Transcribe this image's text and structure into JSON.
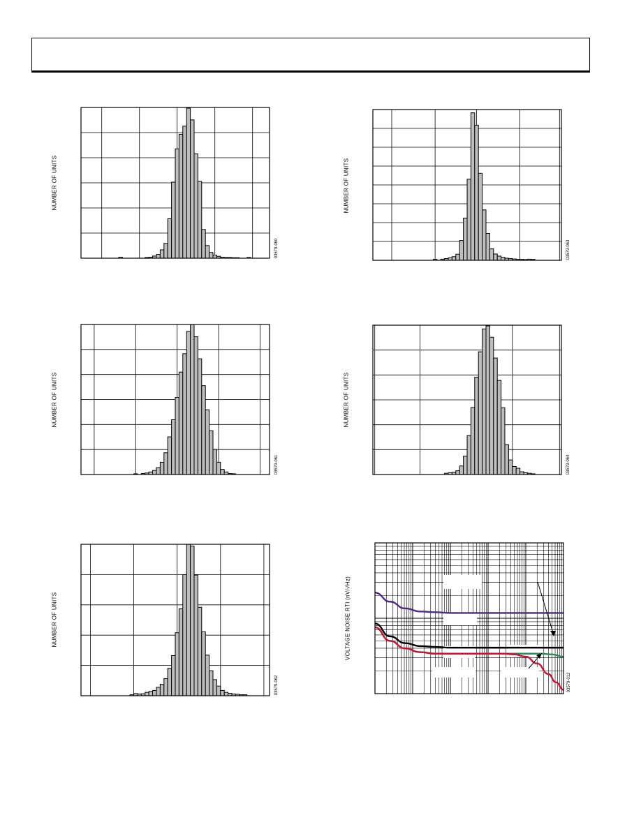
{
  "page": {
    "header_text": ""
  },
  "colors": {
    "bar_fill": "#bdbdbd",
    "bar_stroke": "#000000",
    "grid": "#000000",
    "noise_purple": "#4b2a8a",
    "noise_black": "#000000",
    "noise_green": "#2e8b57",
    "noise_red": "#cc1133"
  },
  "chart_data": [
    {
      "type": "bar",
      "id": "hist-1",
      "ylabel": "NUMBER OF UNITS",
      "figure_code": "03579-060",
      "values": [
        0,
        0,
        0,
        0,
        0,
        0,
        0,
        0,
        0,
        0,
        0.4,
        0,
        0,
        0,
        0,
        0,
        0,
        0.3,
        0.4,
        0.9,
        1.6,
        3.5,
        6.2,
        16.5,
        31.8,
        45.7,
        51.8,
        55.2,
        62.7,
        57.8,
        43.6,
        32.1,
        12.0,
        5.3,
        2.4,
        1.3,
        0.8,
        0.4,
        0.3,
        0.3,
        0.2,
        0.2,
        0,
        0,
        0.3,
        0,
        0,
        0,
        0,
        0
      ],
      "ylim": [
        0,
        63
      ],
      "xgrid_fraction": [
        0.11,
        0.31,
        0.51,
        0.71,
        0.91
      ],
      "ygrid_count": 6,
      "grid": true
    },
    {
      "type": "bar",
      "id": "hist-2",
      "ylabel": "NUMBER OF UNITS",
      "figure_code": "03579-061",
      "values": [
        0,
        0,
        0,
        0,
        0,
        0,
        0,
        0,
        0,
        0,
        0,
        0,
        0,
        0,
        0.3,
        0,
        0.4,
        0.6,
        1.0,
        1.6,
        2.7,
        4.8,
        8.5,
        14.7,
        21.4,
        30.1,
        40.0,
        47.2,
        55.9,
        58.6,
        53.8,
        45.2,
        34.7,
        25.3,
        17.1,
        9.8,
        4.8,
        2.0,
        1.0,
        0.4,
        0.3,
        0,
        0,
        0,
        0,
        0,
        0,
        0,
        0,
        0
      ],
      "ylim": [
        0,
        58.6
      ],
      "xgrid_fraction": [
        0.07,
        0.29,
        0.51,
        0.73,
        0.95
      ],
      "ygrid_count": 6,
      "grid": true
    },
    {
      "type": "bar",
      "id": "hist-3",
      "ylabel": "NUMBER OF UNITS",
      "figure_code": "03579-062",
      "values": [
        0,
        0,
        0,
        0,
        0,
        0,
        0,
        0,
        0,
        0,
        0,
        0,
        0,
        0.4,
        0.9,
        0.7,
        0.8,
        1.4,
        1.8,
        2.2,
        3.5,
        4.8,
        7.1,
        11.4,
        16.7,
        26.2,
        36.2,
        50.4,
        63.0,
        62.3,
        50.2,
        36.8,
        26.6,
        16.9,
        10.4,
        6.7,
        4.0,
        2.2,
        1.4,
        1.0,
        0.7,
        0.6,
        0.4,
        0.4,
        0,
        0,
        0,
        0,
        0,
        0
      ],
      "ylim": [
        0,
        63
      ],
      "xgrid_fraction": [
        0.05,
        0.28,
        0.51,
        0.74,
        0.97
      ],
      "ygrid_count": 5,
      "grid": true
    },
    {
      "type": "bar",
      "id": "hist-4",
      "ylabel": "NUMBER OF UNITS",
      "figure_code": "03579-063",
      "values": [
        0,
        0,
        0,
        0,
        0,
        0,
        0,
        0,
        0,
        0,
        0,
        0,
        0,
        0,
        0,
        0,
        0.5,
        0,
        0.6,
        0.9,
        1.3,
        1.9,
        3.2,
        10.4,
        22.1,
        42.5,
        77.3,
        70.8,
        45.6,
        26.4,
        14.1,
        6.0,
        3.3,
        2.2,
        1.6,
        1.1,
        0.9,
        0.7,
        0.5,
        0.5,
        0.4,
        0.6,
        0.5,
        0,
        0,
        0,
        0,
        0,
        0,
        0
      ],
      "ylim": [
        0,
        79
      ],
      "xgrid_fraction": [
        0.1,
        0.33,
        0.55,
        0.78,
        0.99
      ],
      "ygrid_count": 8,
      "grid": true
    },
    {
      "type": "bar",
      "id": "hist-5",
      "ylabel": "NUMBER OF UNITS",
      "figure_code": "03579-064",
      "values": [
        0,
        0,
        0,
        0,
        0,
        0,
        0,
        0,
        0,
        0,
        0,
        0,
        0,
        0,
        0,
        0,
        0,
        0,
        0,
        0.5,
        0.7,
        0.9,
        1.5,
        3.4,
        7.3,
        15.5,
        26.7,
        38.8,
        48.9,
        58.0,
        59.2,
        54.7,
        46.4,
        37.5,
        26.6,
        11.9,
        5.8,
        3.2,
        2.5,
        1.1,
        0.7,
        0.5,
        0.3,
        0,
        0,
        0,
        0,
        0,
        0,
        0
      ],
      "ylim": [
        0,
        59.5
      ],
      "xgrid_fraction": [
        0.01,
        0.25,
        0.74,
        0.99
      ],
      "ygrid_count": 6,
      "grid": true
    },
    {
      "type": "line",
      "id": "noise-plot",
      "ylabel": "VOLTAGE NOISE RTI (nV/√Hz)",
      "figure_code": "03579-012",
      "xscale": "log",
      "yscale": "log",
      "xdecades": 5,
      "ydecades": 2,
      "series": [
        {
          "color_key": "noise_purple",
          "x": [
            0,
            0.4,
            0.8,
            1.2,
            1.6,
            2.0,
            2.5,
            3.0,
            4.0,
            5.0
          ],
          "y": [
            1.34,
            1.22,
            1.13,
            1.09,
            1.08,
            1.07,
            1.07,
            1.07,
            1.07,
            1.07
          ]
        },
        {
          "color_key": "noise_black",
          "x": [
            0,
            0.4,
            0.8,
            1.2,
            1.6,
            2.0,
            2.5,
            3.0,
            4.0,
            5.0
          ],
          "y": [
            0.93,
            0.76,
            0.67,
            0.63,
            0.62,
            0.61,
            0.61,
            0.61,
            0.61,
            0.61
          ]
        },
        {
          "color_key": "noise_green",
          "x": [
            0,
            0.4,
            0.8,
            1.2,
            1.6,
            2.0,
            2.5,
            3.0,
            3.6,
            4.0,
            4.4,
            4.7,
            5.0
          ],
          "y": [
            0.88,
            0.7,
            0.6,
            0.55,
            0.53,
            0.53,
            0.53,
            0.53,
            0.53,
            0.53,
            0.53,
            0.52,
            0.49
          ]
        },
        {
          "color_key": "noise_red",
          "x": [
            0,
            0.4,
            0.8,
            1.2,
            1.6,
            2.0,
            2.5,
            3.0,
            3.4,
            3.7,
            4.0,
            4.3,
            4.6,
            4.8,
            5.0
          ],
          "y": [
            0.88,
            0.7,
            0.6,
            0.55,
            0.53,
            0.53,
            0.53,
            0.53,
            0.53,
            0.52,
            0.49,
            0.4,
            0.26,
            0.15,
            0.05
          ]
        }
      ],
      "grid": true
    }
  ]
}
